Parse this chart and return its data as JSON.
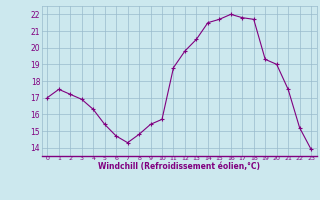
{
  "x": [
    0,
    1,
    2,
    3,
    4,
    5,
    6,
    7,
    8,
    9,
    10,
    11,
    12,
    13,
    14,
    15,
    16,
    17,
    18,
    19,
    20,
    21,
    22,
    23
  ],
  "y": [
    17.0,
    17.5,
    17.2,
    16.9,
    16.3,
    15.4,
    14.7,
    14.3,
    14.8,
    15.4,
    15.7,
    18.8,
    19.8,
    20.5,
    21.5,
    21.7,
    22.0,
    21.8,
    21.7,
    19.3,
    19.0,
    17.5,
    15.2,
    13.9
  ],
  "line_color": "#800080",
  "marker_color": "#800080",
  "bg_color": "#cce8ee",
  "grid_color": "#99bbcc",
  "xlabel": "Windchill (Refroidissement éolien,°C)",
  "xlabel_color": "#800080",
  "tick_color": "#800080",
  "ylim": [
    13.5,
    22.5
  ],
  "xlim": [
    -0.5,
    23.5
  ],
  "yticks": [
    14,
    15,
    16,
    17,
    18,
    19,
    20,
    21,
    22
  ],
  "xticks": [
    0,
    1,
    2,
    3,
    4,
    5,
    6,
    7,
    8,
    9,
    10,
    11,
    12,
    13,
    14,
    15,
    16,
    17,
    18,
    19,
    20,
    21,
    22,
    23
  ],
  "figsize": [
    3.2,
    2.0
  ],
  "dpi": 100
}
